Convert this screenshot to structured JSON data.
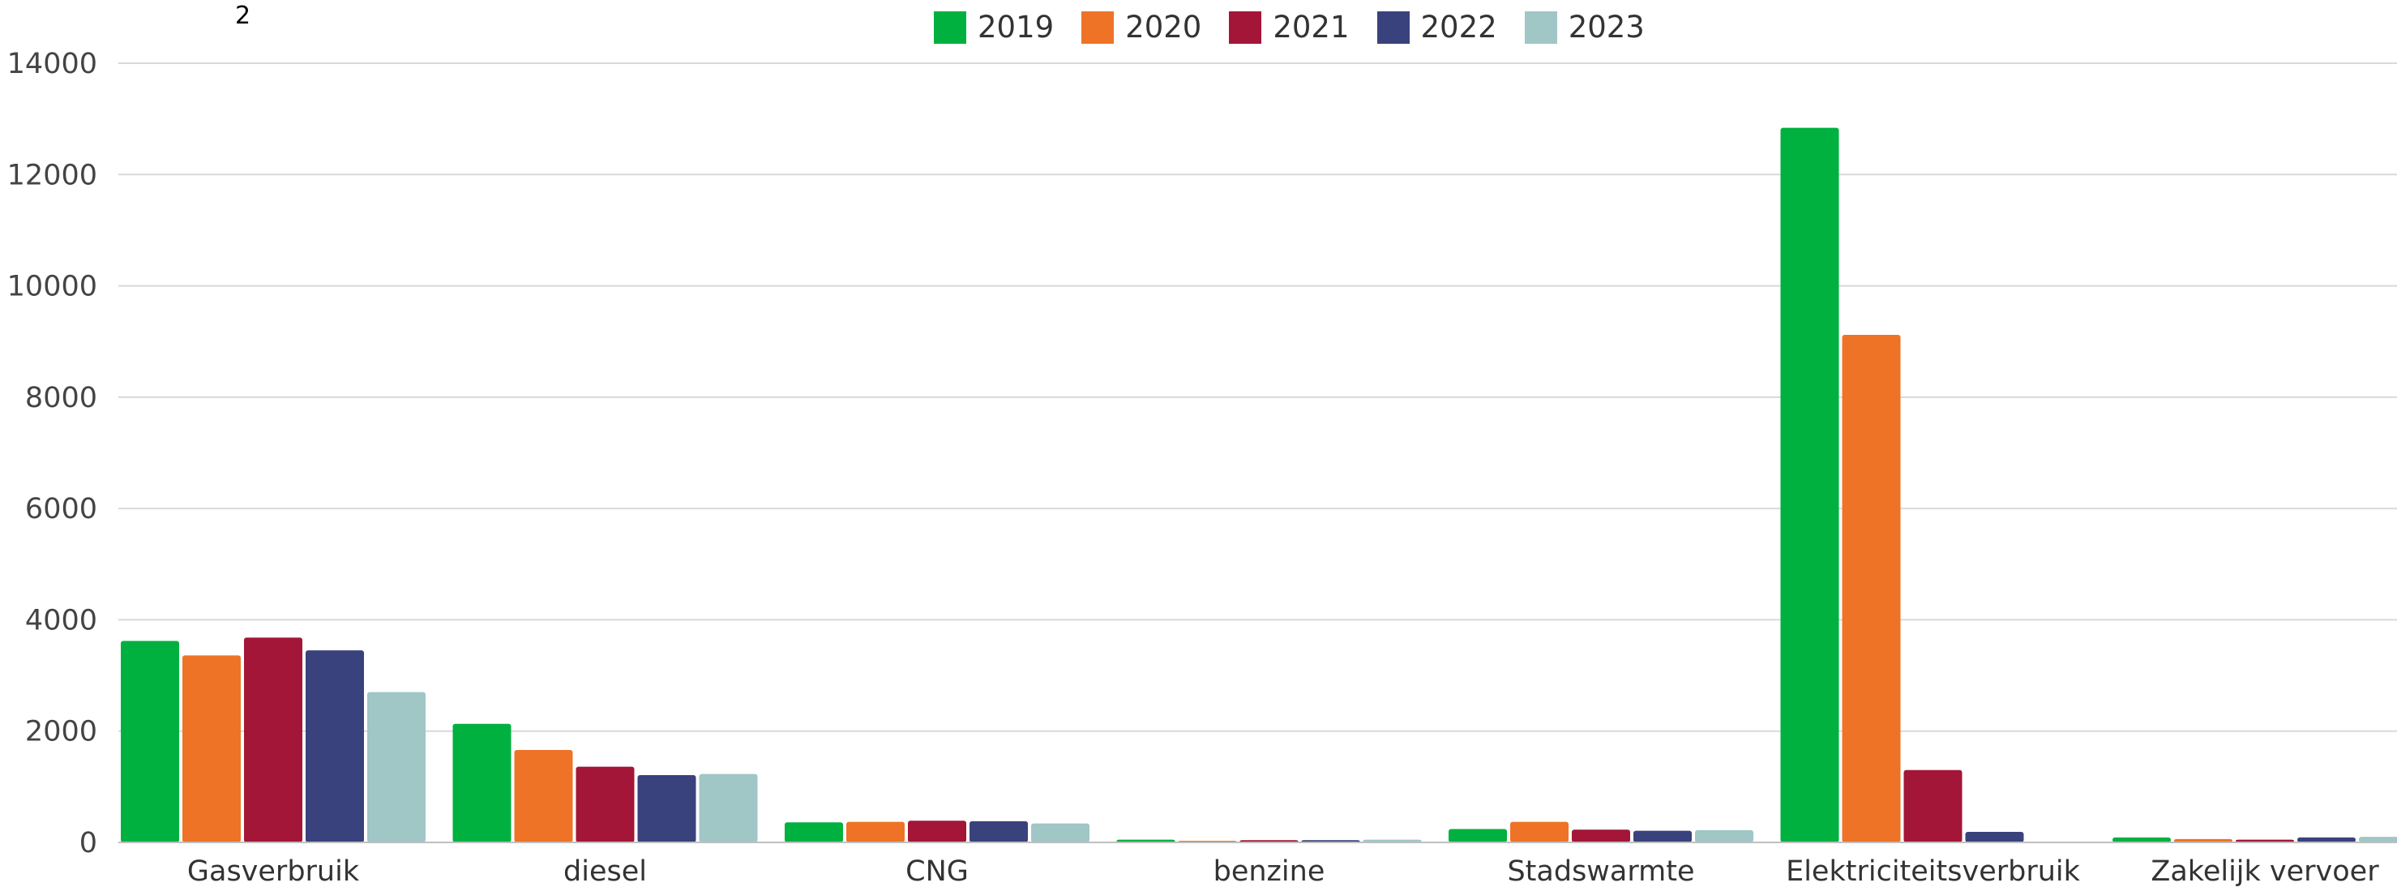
{
  "header": {
    "footnote": "2"
  },
  "chart_data": {
    "type": "bar",
    "categories": [
      "Gasverbruik",
      "diesel",
      "CNG",
      "benzine",
      "Stadswarmte",
      "Elektriciteitsverbruik",
      "Zakelijk vervoer"
    ],
    "series": [
      {
        "name": "2019",
        "color": "#00b140",
        "values": [
          3620,
          2130,
          360,
          50,
          240,
          12840,
          90
        ]
      },
      {
        "name": "2020",
        "color": "#ee7326",
        "values": [
          3360,
          1660,
          370,
          30,
          370,
          9120,
          60
        ]
      },
      {
        "name": "2021",
        "color": "#a31638",
        "values": [
          3680,
          1360,
          390,
          40,
          230,
          1300,
          50
        ]
      },
      {
        "name": "2022",
        "color": "#3a427d",
        "values": [
          3450,
          1210,
          380,
          40,
          210,
          190,
          90
        ]
      },
      {
        "name": "2023",
        "color": "#a0c6c6",
        "values": [
          2700,
          1230,
          340,
          50,
          220,
          0,
          100
        ]
      }
    ],
    "yticks": [
      "0",
      "2000",
      "4000",
      "6000",
      "8000",
      "10000",
      "12000",
      "14000"
    ],
    "ylim": [
      0,
      14000
    ],
    "grid": true,
    "legend_position": "top-center",
    "title": "",
    "xlabel": "",
    "ylabel": ""
  }
}
